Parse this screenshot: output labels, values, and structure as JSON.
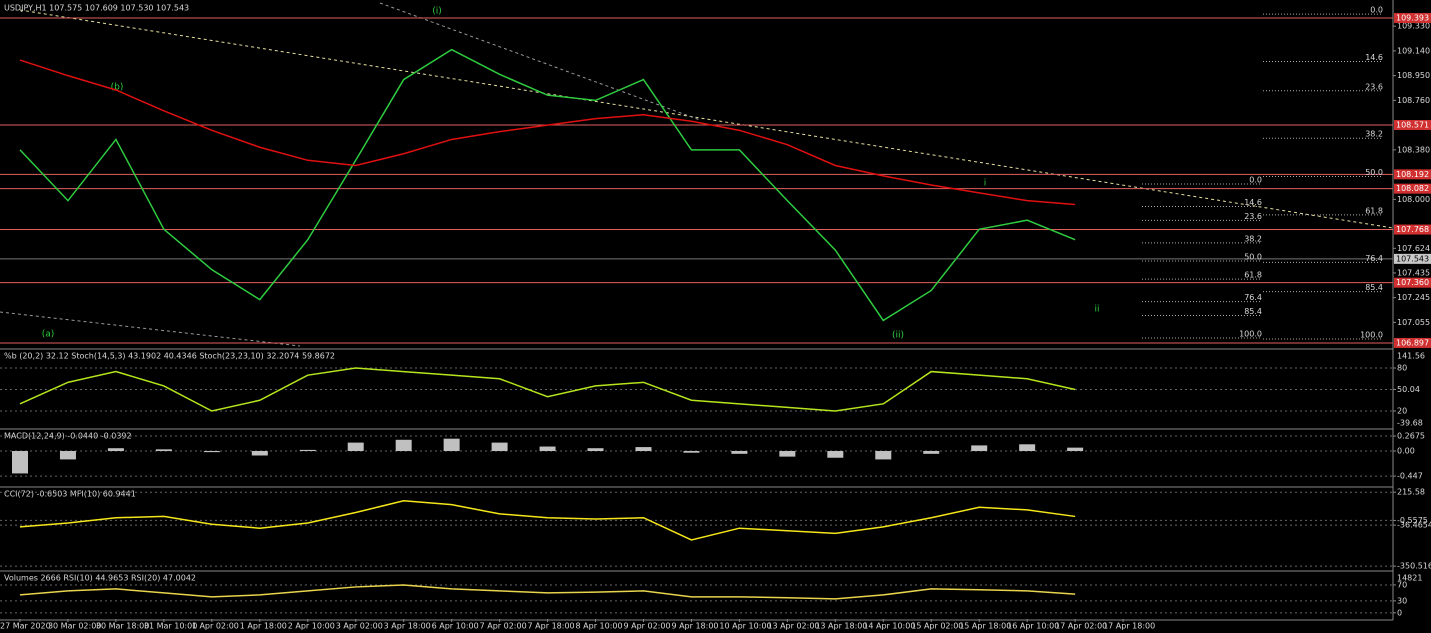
{
  "chart_data": [
    {
      "type": "line",
      "title": "USDJPY,H1 107.575 107.609 107.530 107.543",
      "categories": [
        "27 Mar 2020",
        "30 Mar 02:00",
        "30 Mar 18:00",
        "31 Mar 10:00",
        "1 Apr 02:00",
        "1 Apr 18:00",
        "2 Apr 10:00",
        "3 Apr 02:00",
        "3 Apr 18:00",
        "6 Apr 10:00",
        "7 Apr 02:00",
        "7 Apr 18:00",
        "8 Apr 10:00",
        "9 Apr 02:00",
        "9 Apr 18:00",
        "10 Apr 10:00",
        "13 Apr 02:00",
        "13 Apr 18:00",
        "14 Apr 10:00",
        "15 Apr 02:00",
        "15 Apr 18:00",
        "16 Apr 10:00",
        "17 Apr 02:00",
        "17 Apr 18:00"
      ],
      "series": [
        {
          "color": "#2ecc40",
          "values": [
            108.38,
            107.99,
            108.46,
            107.77,
            107.46,
            107.23,
            107.69,
            108.3,
            108.92,
            109.15,
            108.96,
            108.8,
            108.76,
            108.92,
            108.38,
            108.38,
            107.99,
            107.61,
            107.07,
            107.3,
            107.77,
            107.84,
            107.69,
            null
          ]
        },
        {
          "color": "#e01010",
          "values": [
            109.07,
            108.95,
            108.84,
            108.68,
            108.53,
            108.4,
            108.3,
            108.26,
            108.35,
            108.46,
            108.52,
            108.57,
            108.62,
            108.65,
            108.6,
            108.53,
            108.42,
            108.26,
            108.18,
            108.11,
            108.05,
            107.99,
            107.96,
            null
          ]
        }
      ],
      "ylim": [
        106.866,
        109.508
      ],
      "yticks": [
        {
          "value": 109.33,
          "label": "109.330"
        },
        {
          "value": 109.14,
          "label": "109.140"
        },
        {
          "value": 108.95,
          "label": "108.950"
        },
        {
          "value": 108.76,
          "label": "108.760"
        },
        {
          "value": 108.38,
          "label": "108.380"
        },
        {
          "value": 108.0,
          "label": "108.000"
        },
        107.624,
        107.435,
        107.245,
        107.055
      ],
      "levels": [
        109.393,
        108.571,
        108.192,
        108.082,
        107.768,
        {
          "value": 107.36,
          "label": "107.360"
        },
        106.897
      ],
      "current": 107.543,
      "fib_sets": [
        {
          "high": 109.423,
          "low": 106.927,
          "levels": [
            {
              "value": 0,
              "label": "0.0"
            },
            14.6,
            23.6,
            38.2,
            {
              "value": 50,
              "label": "50.0"
            },
            61.8,
            76.4,
            85.4,
            {
              "value": 100,
              "label": "100.0"
            }
          ]
        },
        {
          "high": 108.118,
          "low": 106.935,
          "levels": [
            {
              "value": 0,
              "label": "0.0"
            },
            14.6,
            23.6,
            38.2,
            {
              "value": 50,
              "label": "50.0"
            },
            61.8,
            76.4,
            85.4,
            {
              "value": 100,
              "label": "100.0"
            }
          ]
        }
      ],
      "annotations": [
        "(i)",
        "(b)",
        "(a)",
        "(ii)",
        "i",
        "ii"
      ]
    },
    {
      "type": "line",
      "title": "%b (20,2) 32.12  Stoch(14,5,3) 43.1902 40.4346  Stoch(23,23,10) 32.2074 59.8672",
      "series": [
        {
          "color": "#b5e61d",
          "values": [
            30,
            60,
            75,
            55,
            20,
            35,
            70,
            80,
            75,
            70,
            65,
            40,
            55,
            60,
            35,
            30,
            25,
            20,
            30,
            75,
            70,
            65,
            50,
            null
          ]
        }
      ],
      "ylim": [
        -2.3,
        103.7
      ],
      "yticks": [
        80,
        50.04,
        20
      ],
      "scale_labels": [
        "141.56",
        "-39.68"
      ]
    },
    {
      "type": "bar",
      "title": "MACD(12,24,9) -0.0440 -0.0392",
      "series": [
        {
          "color": "#c0c0c0",
          "values": [
            -0.4,
            -0.15,
            0.05,
            0.03,
            -0.02,
            -0.08,
            0.02,
            0.15,
            0.2,
            0.22,
            0.15,
            0.08,
            0.05,
            0.07,
            -0.03,
            -0.05,
            -0.1,
            -0.12,
            -0.15,
            -0.05,
            0.1,
            0.12,
            0.06,
            null
          ]
        }
      ],
      "ylim": [
        -0.624,
        0.357
      ],
      "yticks": [
        0.2675,
        {
          "value": 0,
          "label": "0.00"
        },
        -0.447
      ]
    },
    {
      "type": "line",
      "title": "CCI(72) -0.6503  MFI(10) 60.9441",
      "series": [
        {
          "color": "#f5e61a",
          "values": [
            -50,
            -20,
            20,
            30,
            -30,
            -60,
            -20,
            60,
            150,
            120,
            50,
            20,
            10,
            20,
            -150,
            -60,
            -80,
            -100,
            -50,
            20,
            100,
            80,
            30,
            null
          ]
        }
      ],
      "ylim": [
        -380,
        240
      ],
      "yticks": [
        215.58,
        -0.5575,
        -36.4654,
        -350.5165
      ]
    },
    {
      "type": "line",
      "title": "Volumes 2666  RSI(10) 44.9653  RSI(20) 47.0042",
      "series": [
        {
          "color": "#e8d44d",
          "values": [
            45,
            55,
            60,
            50,
            40,
            45,
            55,
            65,
            70,
            60,
            55,
            50,
            52,
            55,
            40,
            40,
            38,
            35,
            45,
            60,
            58,
            55,
            47,
            null
          ]
        }
      ],
      "ylim": [
        -13,
        100
      ],
      "yticks": [
        70,
        30,
        0
      ],
      "scale_labels": [
        "14821"
      ]
    }
  ]
}
